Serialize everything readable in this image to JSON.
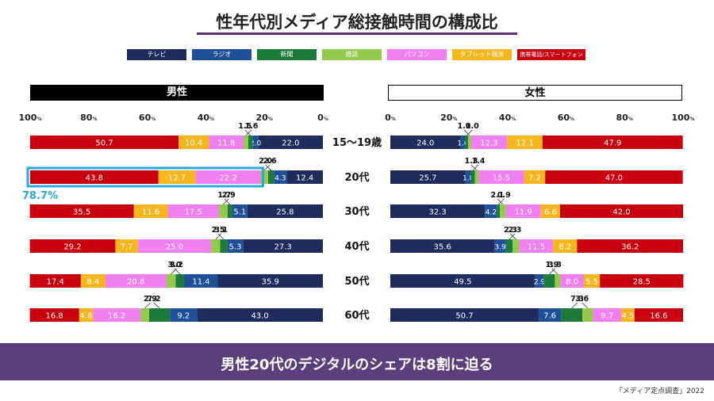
{
  "title": "性年代別メディア総接触時間の構成比",
  "legend": [
    {
      "label": "テレビ",
      "color": "#1e2b5c"
    },
    {
      "label": "ラジオ",
      "color": "#1f4f99"
    },
    {
      "label": "新聞",
      "color": "#1d7a3a"
    },
    {
      "label": "雑誌",
      "color": "#93c94c"
    },
    {
      "label": "パソコン",
      "color": "#f07ff0"
    },
    {
      "label": "タブレット端末",
      "color": "#f5b51c"
    },
    {
      "label": "携帯電話/スマートフォン",
      "color": "#c8000e"
    }
  ],
  "male_header": "男性",
  "female_header": "女性",
  "male_axis": [
    "100",
    "80",
    "60",
    "40",
    "20",
    "0"
  ],
  "female_axis": [
    "0",
    "20",
    "40",
    "60",
    "80",
    "100"
  ],
  "pct_unit": "%",
  "highlight_value": "78.7%",
  "banner": "男性20代のデジタルのシェアは8割に迫る",
  "source": "「メディア定点調査」2022",
  "chart_data": {
    "type": "bar",
    "stacked": true,
    "orientation": "horizontal",
    "xlim": [
      0,
      100
    ],
    "categories": [
      "15～19歳",
      "20代",
      "30代",
      "40代",
      "50代",
      "60代"
    ],
    "series_order": [
      "テレビ",
      "ラジオ",
      "新聞",
      "雑誌",
      "パソコン",
      "タブレット端末",
      "携帯電話/スマートフォン"
    ],
    "male": {
      "header": "男性",
      "values": [
        [
          22.0,
          2.0,
          1.5,
          1.6,
          11.8,
          10.4,
          50.7
        ],
        [
          12.4,
          4.3,
          2.0,
          2.6,
          22.2,
          12.7,
          43.8
        ],
        [
          25.8,
          5.1,
          1.7,
          2.9,
          17.5,
          11.6,
          35.5
        ],
        [
          27.3,
          5.3,
          2.5,
          3.1,
          25.0,
          7.7,
          29.2
        ],
        [
          35.9,
          11.4,
          3.0,
          3.2,
          20.8,
          8.4,
          17.4
        ],
        [
          43.0,
          9.2,
          7.2,
          2.9,
          16.2,
          4.8,
          16.8
        ]
      ]
    },
    "female": {
      "header": "女性",
      "values": [
        [
          24.0,
          1.6,
          1.0,
          1.0,
          12.3,
          12.1,
          47.9
        ],
        [
          25.7,
          1.8,
          1.4,
          1.3,
          15.5,
          7.2,
          47.0
        ],
        [
          32.3,
          4.2,
          0.9,
          2.1,
          11.9,
          6.6,
          42.0
        ],
        [
          35.6,
          3.9,
          2.3,
          2.3,
          11.5,
          8.2,
          36.2
        ],
        [
          49.5,
          2.9,
          3.8,
          1.9,
          8.0,
          5.5,
          28.5
        ],
        [
          50.7,
          7.6,
          7.3,
          3.6,
          9.7,
          4.5,
          16.6
        ]
      ]
    }
  }
}
